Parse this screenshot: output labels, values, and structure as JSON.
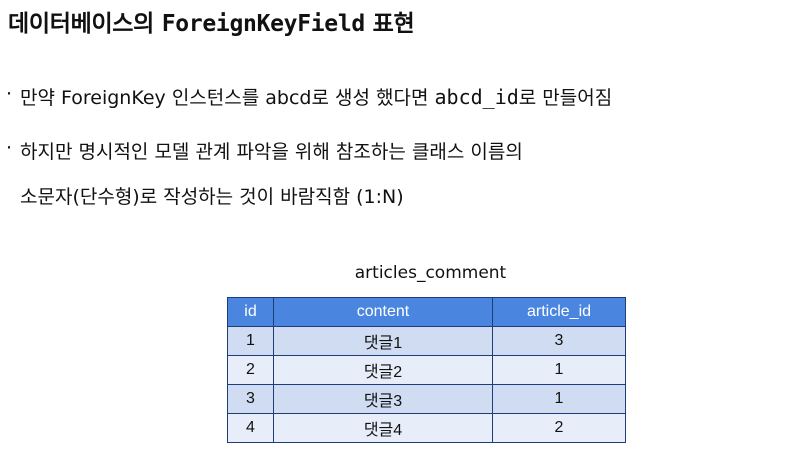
{
  "title": {
    "prefix": "데이터베이스의 ",
    "code": "ForeignKeyField",
    "suffix": " 표현"
  },
  "bullets": [
    {
      "marker": "·",
      "text_before": "만약 ForeignKey 인스턴스를 abcd로 생성 했다면 ",
      "code": "abcd_id",
      "text_after": "로 만들어짐"
    },
    {
      "marker": "·",
      "line1": "하지만 명시적인 모델 관계 파악을 위해 참조하는 클래스 이름의",
      "line2": "소문자(단수형)로 작성하는 것이 바람직함 (1:N)"
    }
  ],
  "table": {
    "caption": "articles_comment",
    "headers": [
      "id",
      "content",
      "article_id"
    ],
    "rows": [
      [
        "1",
        "댓글1",
        "3"
      ],
      [
        "2",
        "댓글2",
        "1"
      ],
      [
        "3",
        "댓글3",
        "1"
      ],
      [
        "4",
        "댓글4",
        "2"
      ]
    ]
  },
  "colors": {
    "header_bg": "#4a86e0",
    "row_odd_bg": "#cfdcf2",
    "row_even_bg": "#e8eef9",
    "border": "#1f3d7a"
  }
}
